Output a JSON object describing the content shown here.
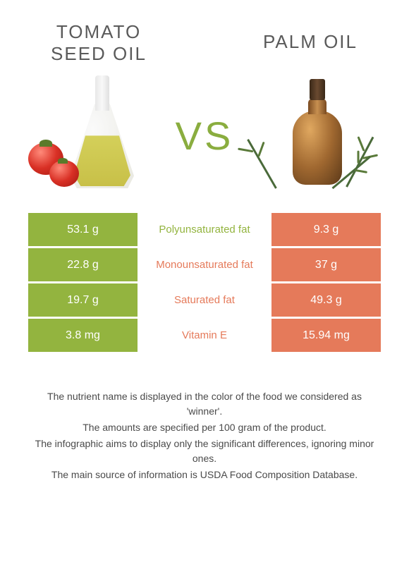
{
  "colors": {
    "left": "#93b43f",
    "right": "#e57a5a",
    "vs": "#8aad3f",
    "title": "#5a5a5a",
    "footer": "#4a4a4a"
  },
  "left_title": "TOMATO\nSEED OIL",
  "right_title": "PALM OIL",
  "vs_label": "VS",
  "rows": [
    {
      "left": "53.1 g",
      "label": "Polyunsaturated fat",
      "right": "9.3 g",
      "winner": "left"
    },
    {
      "left": "22.8 g",
      "label": "Monounsaturated fat",
      "right": "37 g",
      "winner": "right"
    },
    {
      "left": "19.7 g",
      "label": "Saturated fat",
      "right": "49.3 g",
      "winner": "right"
    },
    {
      "left": "3.8 mg",
      "label": "Vitamin E",
      "right": "15.94 mg",
      "winner": "right"
    }
  ],
  "footer": [
    "The nutrient name is displayed in the color of the food we considered as 'winner'.",
    "The amounts are specified per 100 gram of the product.",
    "The infographic aims to display only the significant differences, ignoring minor ones.",
    "The main source of information is USDA Food Composition Database."
  ]
}
